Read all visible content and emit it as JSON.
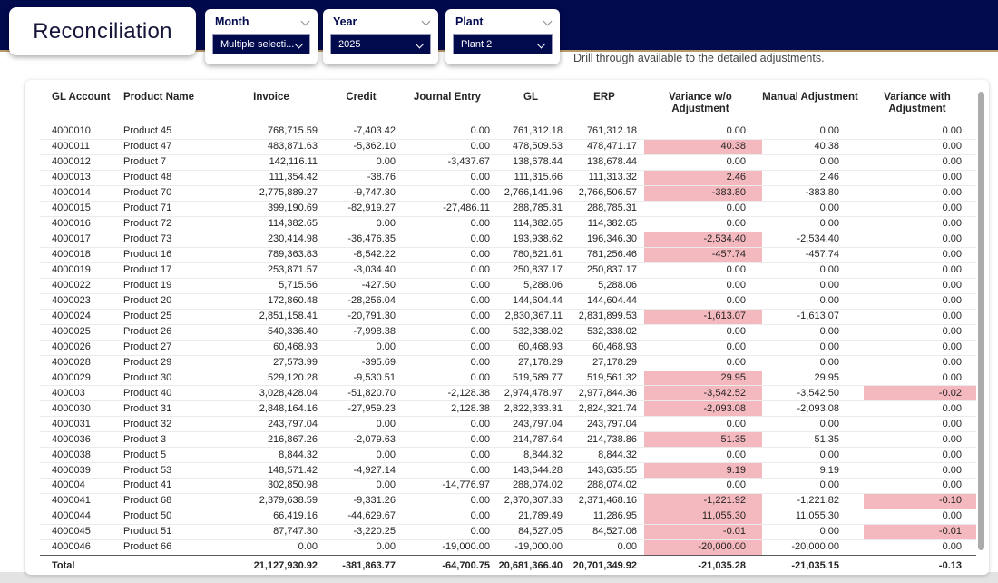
{
  "header": {
    "title": "Reconciliation",
    "filters": [
      {
        "id": "month",
        "label": "Month",
        "value": "Multiple selecti..."
      },
      {
        "id": "year",
        "label": "Year",
        "value": "2025"
      },
      {
        "id": "plant",
        "label": "Plant",
        "value": "Plant 2"
      }
    ],
    "drill_note": "Drill through available to the detailed adjustments."
  },
  "icons": {
    "filter_collapse": "chevron-down",
    "dropdown_expand": "chevron-down"
  },
  "colors": {
    "navy": "#020A4E",
    "gold_line": "#BA9A6A",
    "highlight_pink": "#F4B8BF",
    "scrollbar_thumb": "#ABABAB"
  },
  "table": {
    "columns": [
      {
        "key": "gl_account",
        "label": "GL Account"
      },
      {
        "key": "product",
        "label": "Product Name"
      },
      {
        "key": "invoice",
        "label": "Invoice"
      },
      {
        "key": "credit",
        "label": "Credit"
      },
      {
        "key": "journal",
        "label": "Journal Entry"
      },
      {
        "key": "gl",
        "label": "GL"
      },
      {
        "key": "erp",
        "label": "ERP"
      },
      {
        "key": "var_wo",
        "label": "Variance w/o Adjustment"
      },
      {
        "key": "manual",
        "label": "Manual Adjustment"
      },
      {
        "key": "var_with",
        "label": "Variance with Adjustment"
      }
    ],
    "rows": [
      {
        "gl_account": "4000010",
        "product": "Product 45",
        "invoice": "768,715.59",
        "credit": "-7,403.42",
        "journal": "0.00",
        "gl": "761,312.18",
        "erp": "761,312.18",
        "var_wo": "0.00",
        "manual": "0.00",
        "var_with": "0.00",
        "var_wo_hl": false,
        "var_with_hl": false
      },
      {
        "gl_account": "4000011",
        "product": "Product 47",
        "invoice": "483,871.63",
        "credit": "-5,362.10",
        "journal": "0.00",
        "gl": "478,509.53",
        "erp": "478,471.17",
        "var_wo": "40.38",
        "manual": "40.38",
        "var_with": "0.00",
        "var_wo_hl": true,
        "var_with_hl": false
      },
      {
        "gl_account": "4000012",
        "product": "Product 7",
        "invoice": "142,116.11",
        "credit": "0.00",
        "journal": "-3,437.67",
        "gl": "138,678.44",
        "erp": "138,678.44",
        "var_wo": "0.00",
        "manual": "0.00",
        "var_with": "0.00",
        "var_wo_hl": false,
        "var_with_hl": false
      },
      {
        "gl_account": "4000013",
        "product": "Product 48",
        "invoice": "111,354.42",
        "credit": "-38.76",
        "journal": "0.00",
        "gl": "111,315.66",
        "erp": "111,313.32",
        "var_wo": "2.46",
        "manual": "2.46",
        "var_with": "0.00",
        "var_wo_hl": true,
        "var_with_hl": false
      },
      {
        "gl_account": "4000014",
        "product": "Product 70",
        "invoice": "2,775,889.27",
        "credit": "-9,747.30",
        "journal": "0.00",
        "gl": "2,766,141.96",
        "erp": "2,766,506.57",
        "var_wo": "-383.80",
        "manual": "-383.80",
        "var_with": "0.00",
        "var_wo_hl": true,
        "var_with_hl": false
      },
      {
        "gl_account": "4000015",
        "product": "Product 71",
        "invoice": "399,190.69",
        "credit": "-82,919.27",
        "journal": "-27,486.11",
        "gl": "288,785.31",
        "erp": "288,785.31",
        "var_wo": "0.00",
        "manual": "0.00",
        "var_with": "0.00",
        "var_wo_hl": false,
        "var_with_hl": false
      },
      {
        "gl_account": "4000016",
        "product": "Product 72",
        "invoice": "114,382.65",
        "credit": "0.00",
        "journal": "0.00",
        "gl": "114,382.65",
        "erp": "114,382.65",
        "var_wo": "0.00",
        "manual": "0.00",
        "var_with": "0.00",
        "var_wo_hl": false,
        "var_with_hl": false
      },
      {
        "gl_account": "4000017",
        "product": "Product 73",
        "invoice": "230,414.98",
        "credit": "-36,476.35",
        "journal": "0.00",
        "gl": "193,938.62",
        "erp": "196,346.30",
        "var_wo": "-2,534.40",
        "manual": "-2,534.40",
        "var_with": "0.00",
        "var_wo_hl": true,
        "var_with_hl": false
      },
      {
        "gl_account": "4000018",
        "product": "Product 16",
        "invoice": "789,363.83",
        "credit": "-8,542.22",
        "journal": "0.00",
        "gl": "780,821.61",
        "erp": "781,256.46",
        "var_wo": "-457.74",
        "manual": "-457.74",
        "var_with": "0.00",
        "var_wo_hl": true,
        "var_with_hl": false
      },
      {
        "gl_account": "4000019",
        "product": "Product 17",
        "invoice": "253,871.57",
        "credit": "-3,034.40",
        "journal": "0.00",
        "gl": "250,837.17",
        "erp": "250,837.17",
        "var_wo": "0.00",
        "manual": "0.00",
        "var_with": "0.00",
        "var_wo_hl": false,
        "var_with_hl": false
      },
      {
        "gl_account": "4000022",
        "product": "Product 19",
        "invoice": "5,715.56",
        "credit": "-427.50",
        "journal": "0.00",
        "gl": "5,288.06",
        "erp": "5,288.06",
        "var_wo": "0.00",
        "manual": "0.00",
        "var_with": "0.00",
        "var_wo_hl": false,
        "var_with_hl": false
      },
      {
        "gl_account": "4000023",
        "product": "Product 20",
        "invoice": "172,860.48",
        "credit": "-28,256.04",
        "journal": "0.00",
        "gl": "144,604.44",
        "erp": "144,604.44",
        "var_wo": "0.00",
        "manual": "0.00",
        "var_with": "0.00",
        "var_wo_hl": false,
        "var_with_hl": false
      },
      {
        "gl_account": "4000024",
        "product": "Product 25",
        "invoice": "2,851,158.41",
        "credit": "-20,791.30",
        "journal": "0.00",
        "gl": "2,830,367.11",
        "erp": "2,831,899.53",
        "var_wo": "-1,613.07",
        "manual": "-1,613.07",
        "var_with": "0.00",
        "var_wo_hl": true,
        "var_with_hl": false
      },
      {
        "gl_account": "4000025",
        "product": "Product 26",
        "invoice": "540,336.40",
        "credit": "-7,998.38",
        "journal": "0.00",
        "gl": "532,338.02",
        "erp": "532,338.02",
        "var_wo": "0.00",
        "manual": "0.00",
        "var_with": "0.00",
        "var_wo_hl": false,
        "var_with_hl": false
      },
      {
        "gl_account": "4000026",
        "product": "Product 27",
        "invoice": "60,468.93",
        "credit": "0.00",
        "journal": "0.00",
        "gl": "60,468.93",
        "erp": "60,468.93",
        "var_wo": "0.00",
        "manual": "0.00",
        "var_with": "0.00",
        "var_wo_hl": false,
        "var_with_hl": false
      },
      {
        "gl_account": "4000028",
        "product": "Product 29",
        "invoice": "27,573.99",
        "credit": "-395.69",
        "journal": "0.00",
        "gl": "27,178.29",
        "erp": "27,178.29",
        "var_wo": "0.00",
        "manual": "0.00",
        "var_with": "0.00",
        "var_wo_hl": false,
        "var_with_hl": false
      },
      {
        "gl_account": "4000029",
        "product": "Product 30",
        "invoice": "529,120.28",
        "credit": "-9,530.51",
        "journal": "0.00",
        "gl": "519,589.77",
        "erp": "519,561.32",
        "var_wo": "29.95",
        "manual": "29.95",
        "var_with": "0.00",
        "var_wo_hl": true,
        "var_with_hl": false
      },
      {
        "gl_account": "400003",
        "product": "Product 40",
        "invoice": "3,028,428.04",
        "credit": "-51,820.70",
        "journal": "-2,128.38",
        "gl": "2,974,478.97",
        "erp": "2,977,844.36",
        "var_wo": "-3,542.52",
        "manual": "-3,542.50",
        "var_with": "-0.02",
        "var_wo_hl": true,
        "var_with_hl": true
      },
      {
        "gl_account": "4000030",
        "product": "Product 31",
        "invoice": "2,848,164.16",
        "credit": "-27,959.23",
        "journal": "2,128.38",
        "gl": "2,822,333.31",
        "erp": "2,824,321.74",
        "var_wo": "-2,093.08",
        "manual": "-2,093.08",
        "var_with": "0.00",
        "var_wo_hl": true,
        "var_with_hl": false
      },
      {
        "gl_account": "4000031",
        "product": "Product 32",
        "invoice": "243,797.04",
        "credit": "0.00",
        "journal": "0.00",
        "gl": "243,797.04",
        "erp": "243,797.04",
        "var_wo": "0.00",
        "manual": "0.00",
        "var_with": "0.00",
        "var_wo_hl": false,
        "var_with_hl": false
      },
      {
        "gl_account": "4000036",
        "product": "Product 3",
        "invoice": "216,867.26",
        "credit": "-2,079.63",
        "journal": "0.00",
        "gl": "214,787.64",
        "erp": "214,738.86",
        "var_wo": "51.35",
        "manual": "51.35",
        "var_with": "0.00",
        "var_wo_hl": true,
        "var_with_hl": false
      },
      {
        "gl_account": "4000038",
        "product": "Product 5",
        "invoice": "8,844.32",
        "credit": "0.00",
        "journal": "0.00",
        "gl": "8,844.32",
        "erp": "8,844.32",
        "var_wo": "0.00",
        "manual": "0.00",
        "var_with": "0.00",
        "var_wo_hl": false,
        "var_with_hl": false
      },
      {
        "gl_account": "4000039",
        "product": "Product 53",
        "invoice": "148,571.42",
        "credit": "-4,927.14",
        "journal": "0.00",
        "gl": "143,644.28",
        "erp": "143,635.55",
        "var_wo": "9.19",
        "manual": "9.19",
        "var_with": "0.00",
        "var_wo_hl": true,
        "var_with_hl": false
      },
      {
        "gl_account": "400004",
        "product": "Product 41",
        "invoice": "302,850.98",
        "credit": "0.00",
        "journal": "-14,776.97",
        "gl": "288,074.02",
        "erp": "288,074.02",
        "var_wo": "0.00",
        "manual": "0.00",
        "var_with": "0.00",
        "var_wo_hl": false,
        "var_with_hl": false
      },
      {
        "gl_account": "4000041",
        "product": "Product 68",
        "invoice": "2,379,638.59",
        "credit": "-9,331.26",
        "journal": "0.00",
        "gl": "2,370,307.33",
        "erp": "2,371,468.16",
        "var_wo": "-1,221.92",
        "manual": "-1,221.82",
        "var_with": "-0.10",
        "var_wo_hl": true,
        "var_with_hl": true
      },
      {
        "gl_account": "4000044",
        "product": "Product 50",
        "invoice": "66,419.16",
        "credit": "-44,629.67",
        "journal": "0.00",
        "gl": "21,789.49",
        "erp": "11,286.95",
        "var_wo": "11,055.30",
        "manual": "11,055.30",
        "var_with": "0.00",
        "var_wo_hl": true,
        "var_with_hl": false
      },
      {
        "gl_account": "4000045",
        "product": "Product 51",
        "invoice": "87,747.30",
        "credit": "-3,220.25",
        "journal": "0.00",
        "gl": "84,527.05",
        "erp": "84,527.06",
        "var_wo": "-0.01",
        "manual": "0.00",
        "var_with": "-0.01",
        "var_wo_hl": true,
        "var_with_hl": true
      },
      {
        "gl_account": "4000046",
        "product": "Product 66",
        "invoice": "0.00",
        "credit": "0.00",
        "journal": "-19,000.00",
        "gl": "-19,000.00",
        "erp": "0.00",
        "var_wo": "-20,000.00",
        "manual": "-20,000.00",
        "var_with": "0.00",
        "var_wo_hl": true,
        "var_with_hl": false
      }
    ],
    "total": {
      "gl_account": "Total",
      "product": "",
      "invoice": "21,127,930.92",
      "credit": "-381,863.77",
      "journal": "-64,700.75",
      "gl": "20,681,366.40",
      "erp": "20,701,349.92",
      "var_wo": "-21,035.28",
      "manual": "-21,035.15",
      "var_with": "-0.13"
    }
  }
}
